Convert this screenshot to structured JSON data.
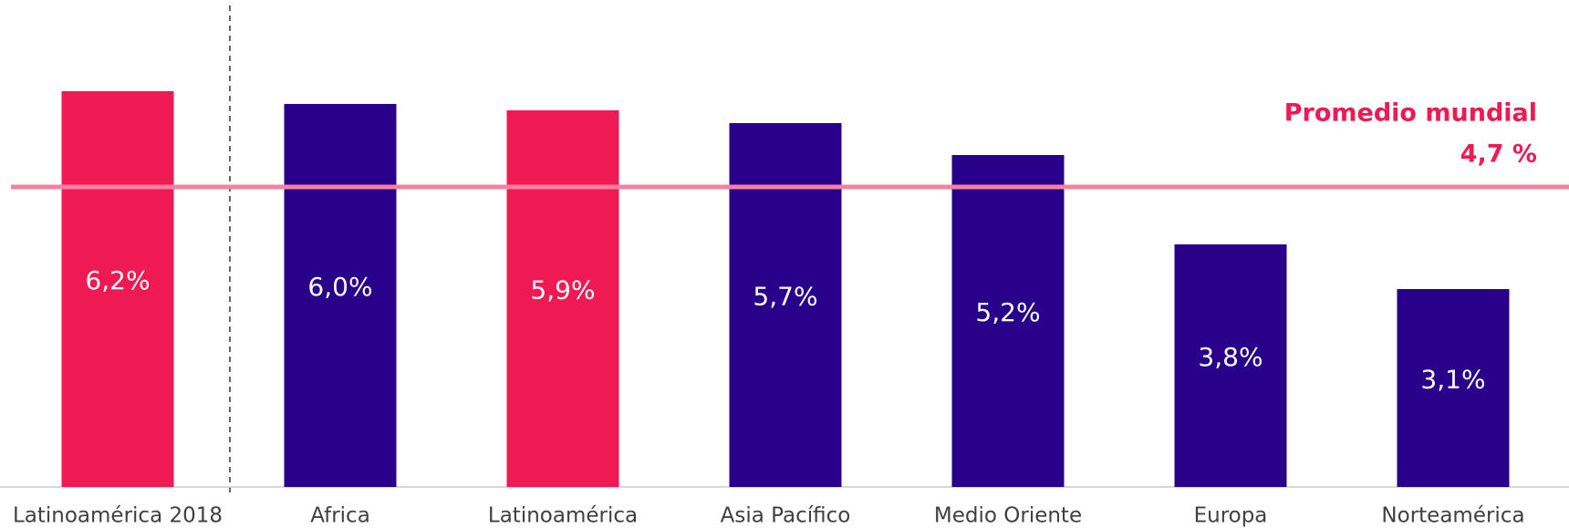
{
  "chart_data": {
    "type": "bar",
    "categories": [
      "Latinoamérica 2018",
      "Africa",
      "Latinoamérica",
      "Asia Pacífico",
      "Medio Oriente",
      "Europa",
      "Norteamérica"
    ],
    "values": [
      6.2,
      6.0,
      5.9,
      5.7,
      5.2,
      3.8,
      3.1
    ],
    "value_labels": [
      "6,2%",
      "6,0%",
      "5,9%",
      "5,7%",
      "5,2%",
      "3,8%",
      "3,1%"
    ],
    "colors": [
      "#ef1a53",
      "#29008a",
      "#ef1a53",
      "#29008a",
      "#29008a",
      "#29008a",
      "#29008a"
    ],
    "ylim": [
      0,
      7.6
    ],
    "average": {
      "label": "Promedio mundial",
      "value": 4.7,
      "value_label": "4,7 %",
      "color": "#f4819f",
      "text_color": "#ef1a53"
    }
  }
}
